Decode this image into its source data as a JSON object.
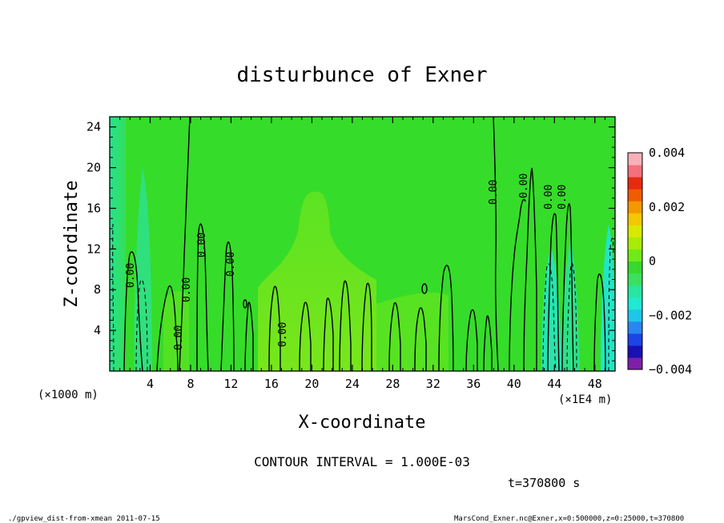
{
  "chart_data": {
    "type": "heatmap",
    "title": "disturbunce of Exner",
    "xlabel": "X-coordinate",
    "ylabel": "Z-coordinate",
    "x_unit_left": "(×1000 m)",
    "x_unit_right": "(×1E4 m)",
    "xlim": [
      0,
      50
    ],
    "ylim": [
      0,
      25
    ],
    "x_ticks": [
      4,
      8,
      12,
      16,
      20,
      24,
      28,
      32,
      36,
      40,
      44,
      48
    ],
    "y_ticks": [
      4,
      8,
      12,
      16,
      20,
      24
    ],
    "colorbar": {
      "range": [
        -0.004,
        0.004
      ],
      "tick_labels": [
        {
          "value": 0.004,
          "label": "0.004"
        },
        {
          "value": 0.002,
          "label": "0.002"
        },
        {
          "value": 0,
          "label": "0"
        },
        {
          "value": -0.002,
          "label": "−0.002"
        },
        {
          "value": -0.004,
          "label": "−0.004"
        }
      ],
      "colors": [
        "#7f1fa8",
        "#1a10b4",
        "#1c44e6",
        "#2a86f0",
        "#1ec6ea",
        "#20e8d2",
        "#28e6a0",
        "#3ce05e",
        "#38d830",
        "#70ea18",
        "#a8ec08",
        "#d8ea00",
        "#f4c800",
        "#f49800",
        "#f05c00",
        "#e82a10",
        "#f4707c",
        "#f8b0b8"
      ]
    },
    "contour_labels": [
      "0.00",
      "0.00",
      "0.00",
      "0.00",
      "0.00",
      "0.00",
      "0.00",
      "0.00",
      "0.00",
      "0.00",
      "0.00",
      "0.00"
    ],
    "contour_interval_text": "CONTOUR INTERVAL = 1.000E-03",
    "time_text": "t=370800 s"
  },
  "footer": {
    "left": "./gpview_dist-from-xmean  2011-07-15",
    "right": "MarsCond_Exner.nc@Exner,x=0:500000,z=0:25000,t=370800"
  }
}
